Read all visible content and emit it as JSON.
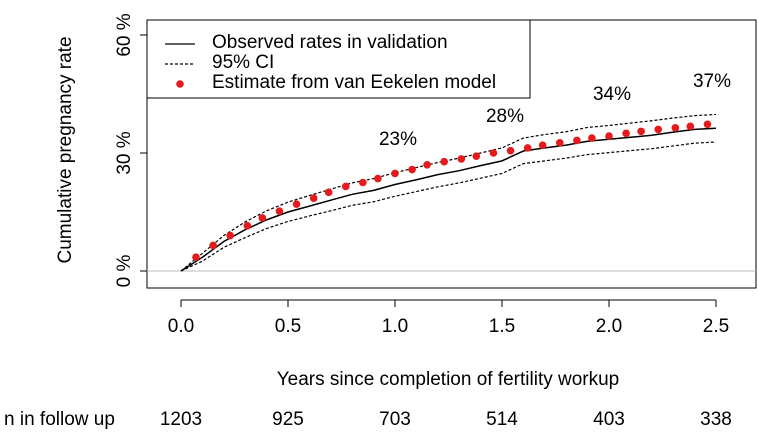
{
  "chart_data": {
    "type": "line",
    "xlabel": "Years since completion of fertility workup",
    "ylabel": "Cumulative pregnancy rate",
    "xlim": [
      0,
      2.5
    ],
    "ylim": [
      0,
      60
    ],
    "xticks": [
      {
        "value": 0,
        "label": "0.0"
      },
      0.5,
      {
        "value": 1,
        "label": "1.0"
      },
      1.5,
      {
        "value": 2,
        "label": "2.0"
      },
      2.5
    ],
    "yticks": [
      {
        "value": 0,
        "label": "0 %"
      },
      {
        "value": 30,
        "label": "30 %"
      },
      {
        "value": 60,
        "label": "60 %"
      }
    ],
    "legend": "top-left",
    "series": [
      {
        "name": "Observed rates in validation",
        "color": "#000000",
        "style": "solid",
        "x": [
          0,
          0.1,
          0.2,
          0.3,
          0.4,
          0.5,
          0.6,
          0.7,
          0.8,
          0.9,
          1.0,
          1.1,
          1.2,
          1.3,
          1.4,
          1.5,
          1.6,
          1.7,
          1.8,
          1.9,
          2.0,
          2.1,
          2.2,
          2.3,
          2.4,
          2.5
        ],
        "values": [
          0,
          3.5,
          7.5,
          10.5,
          13,
          15,
          16.5,
          18,
          19.5,
          20.5,
          22,
          23.2,
          24.5,
          25.5,
          26.8,
          28,
          30.5,
          31.3,
          32,
          33,
          33.5,
          34,
          34.5,
          35.3,
          36,
          36.3
        ]
      },
      {
        "name": "95% CI",
        "color": "#000000",
        "style": "dashed",
        "x": [
          0,
          0.1,
          0.2,
          0.3,
          0.4,
          0.5,
          0.6,
          0.7,
          0.8,
          0.9,
          1.0,
          1.1,
          1.2,
          1.3,
          1.4,
          1.5,
          1.6,
          1.7,
          1.8,
          1.9,
          2.0,
          2.1,
          2.2,
          2.3,
          2.4,
          2.5
        ],
        "upper": [
          0,
          4.5,
          9,
          12.5,
          15.3,
          17.5,
          19.2,
          20.8,
          22.4,
          23.5,
          25,
          26.3,
          27.6,
          28.7,
          30,
          31.3,
          33.8,
          34.7,
          35.4,
          36.5,
          37,
          37.6,
          38.2,
          38.9,
          39.5,
          39.8
        ],
        "lower": [
          0,
          2.5,
          6,
          8.5,
          10.8,
          12.6,
          14,
          15.3,
          16.7,
          17.6,
          19,
          20.2,
          21.4,
          22.4,
          23.6,
          24.8,
          27.3,
          28,
          28.7,
          29.6,
          30.1,
          30.6,
          31.1,
          31.8,
          32.5,
          32.8
        ]
      },
      {
        "name": "Estimate from van Eekelen model",
        "color": "#e41a1c",
        "style": "points",
        "x": [
          0.07,
          0.15,
          0.23,
          0.31,
          0.38,
          0.46,
          0.54,
          0.62,
          0.69,
          0.77,
          0.85,
          0.92,
          1.0,
          1.08,
          1.15,
          1.23,
          1.31,
          1.38,
          1.46,
          1.54,
          1.62,
          1.69,
          1.77,
          1.85,
          1.92,
          2.0,
          2.08,
          2.15,
          2.23,
          2.31,
          2.38,
          2.46
        ],
        "values": [
          3.5,
          6.5,
          9,
          11.5,
          13.5,
          15.2,
          17,
          18.5,
          20,
          21.5,
          22.5,
          23.5,
          24.8,
          25.8,
          27,
          27.8,
          28.5,
          29.2,
          30,
          30.6,
          31.3,
          32,
          32.6,
          33.2,
          33.8,
          34.3,
          35,
          35.5,
          36,
          36.4,
          36.8,
          37.3
        ]
      }
    ],
    "annotations": [
      "23%",
      "28%",
      "34%",
      "37%"
    ],
    "risk_table": {
      "label": "n in follow up",
      "values": [
        1203,
        925,
        703,
        514,
        403,
        338
      ]
    }
  }
}
